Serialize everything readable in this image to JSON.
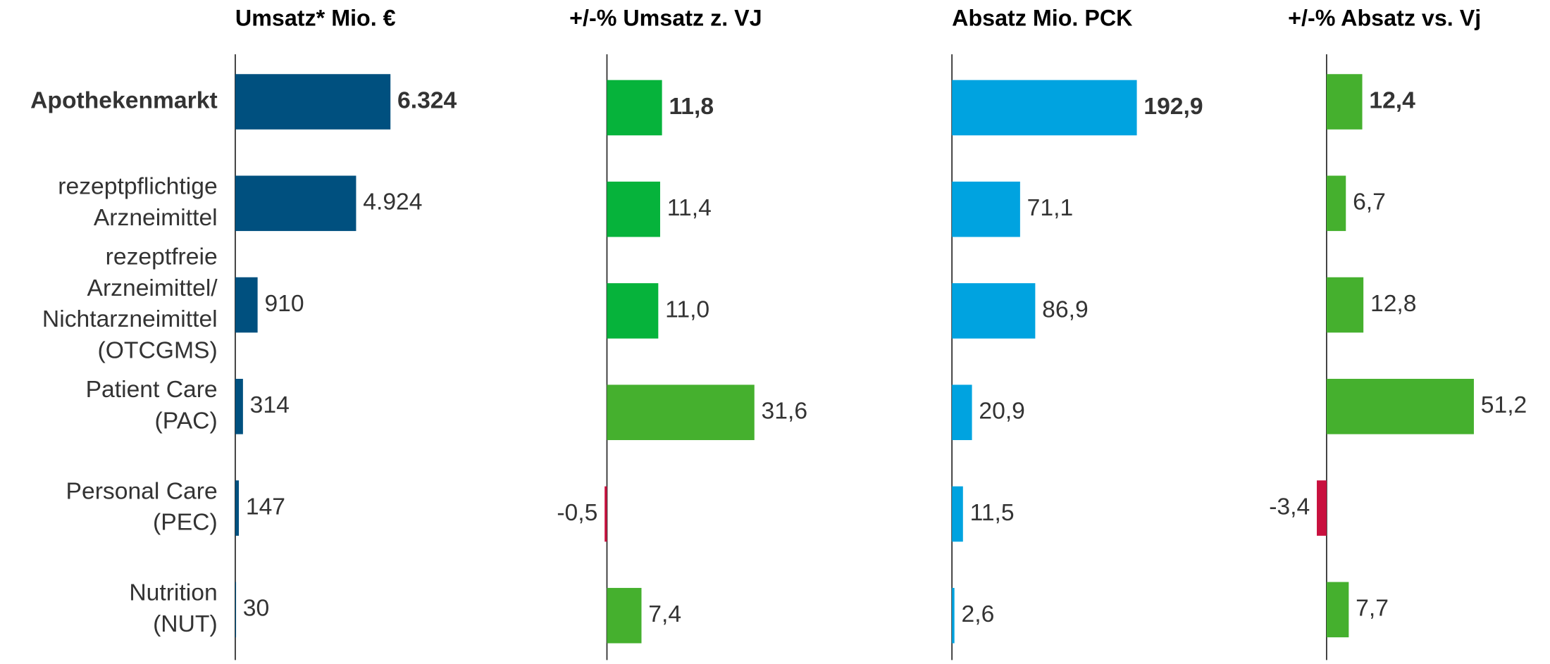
{
  "chart_data": [
    {
      "type": "hbar",
      "title": "Umsatz* Mio. €",
      "categories": [
        [
          "Apothekenmarkt"
        ],
        [
          "rezeptpflichtige",
          "Arzneimittel"
        ],
        [
          "rezeptfreie",
          "Arzneimittel/",
          "Nichtarzneimittel",
          "(OTCGMS)"
        ],
        [
          "Patient Care",
          "(PAC)"
        ],
        [
          "Personal Care",
          "(PEC)"
        ],
        [
          "Nutrition",
          "(NUT)"
        ]
      ],
      "values": [
        6324,
        4924,
        910,
        314,
        147,
        30
      ],
      "value_labels": [
        "6.324",
        "4.924",
        "910",
        "314",
        "147",
        "30"
      ],
      "colors": [
        "#00507f",
        "#00507f",
        "#00507f",
        "#00507f",
        "#00507f",
        "#00507f"
      ],
      "xlim": [
        0,
        8000
      ]
    },
    {
      "type": "hbar",
      "title": "+/-% Umsatz z. VJ",
      "values": [
        11.8,
        11.4,
        11.0,
        31.6,
        -0.5,
        7.4
      ],
      "value_labels": [
        "11,8",
        "11,4",
        "11,0",
        "31,6",
        "-0,5",
        "7,4"
      ],
      "colors": [
        "#06b33b",
        "#06b33b",
        "#06b33b",
        "#45b02e",
        "#c8103e",
        "#45b02e"
      ],
      "xlim": [
        -5,
        40
      ]
    },
    {
      "type": "hbar",
      "title": "Absatz Mio. PCK",
      "values": [
        192.9,
        71.1,
        86.9,
        20.9,
        11.5,
        2.6
      ],
      "value_labels": [
        "192,9",
        "71,1",
        "86,9",
        "20,9",
        "11,5",
        "2,6"
      ],
      "colors": [
        "#00a3e0",
        "#00a3e0",
        "#00a3e0",
        "#00a3e0",
        "#00a3e0",
        "#00a3e0"
      ],
      "xlim": [
        0,
        250
      ]
    },
    {
      "type": "hbar",
      "title": "+/-% Absatz vs. Vj",
      "values": [
        12.4,
        6.7,
        12.8,
        51.2,
        -3.4,
        7.7
      ],
      "value_labels": [
        "12,4",
        "6,7",
        "12,8",
        "51,2",
        "-3,4",
        "7,7"
      ],
      "colors": [
        "#45b02e",
        "#45b02e",
        "#45b02e",
        "#45b02e",
        "#c8103e",
        "#45b02e"
      ],
      "xlim": [
        -10,
        60
      ]
    }
  ]
}
